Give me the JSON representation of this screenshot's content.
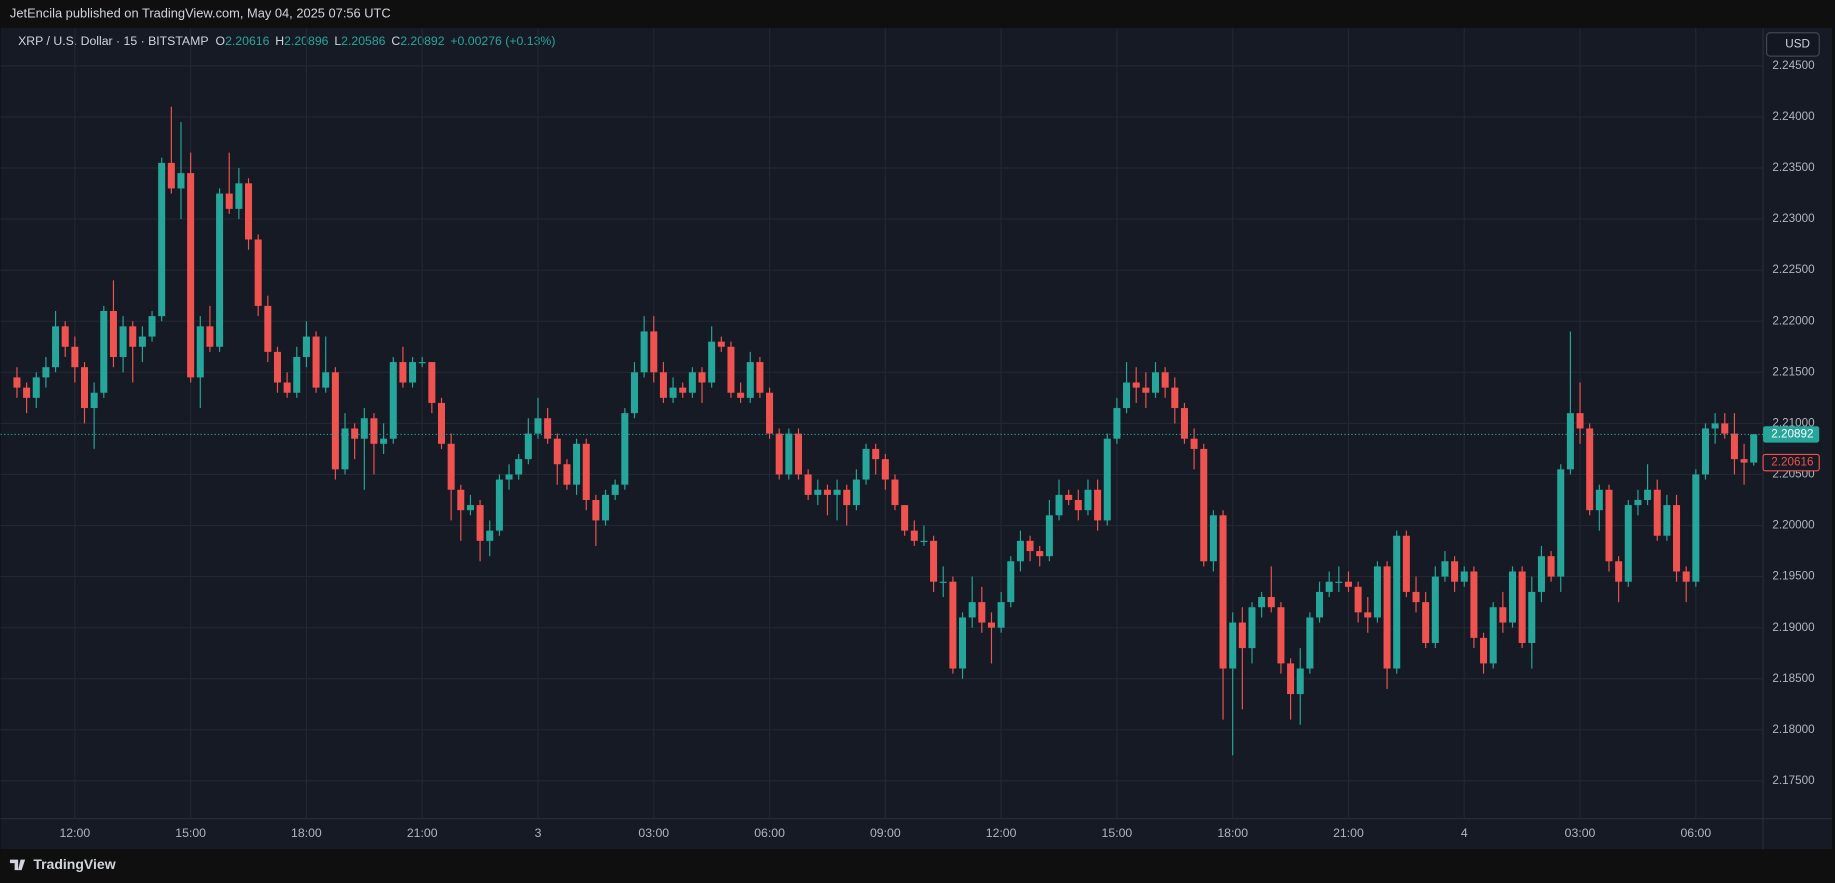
{
  "chart_data": {
    "type": "candlestick",
    "published": "JetEncila published on TradingView.com, May 04, 2025 07:56 UTC",
    "title": "XRP / U.S. Dollar · 15 · BITSTAMP",
    "ohlc": {
      "open": 2.20616,
      "high": 2.20896,
      "low": 2.20586,
      "close": 2.20892,
      "change": "+0.00276 (+0.13%)"
    },
    "ohlc_letters": {
      "open": "O",
      "high": "H",
      "low": "L",
      "close": "C"
    },
    "currency": "USD",
    "brand": "TradingView",
    "up_color": "#26a69a",
    "down_color": "#ef5350",
    "grid": true,
    "ylim": [
      2.1713,
      2.2487
    ],
    "yticks": [
      {
        "value": 2.175,
        "label": "2.17500"
      },
      {
        "value": 2.18,
        "label": "2.18000"
      },
      {
        "value": 2.185,
        "label": "2.18500"
      },
      {
        "value": 2.19,
        "label": "2.19000"
      },
      {
        "value": 2.195,
        "label": "2.19500"
      },
      {
        "value": 2.2,
        "label": "2.20000"
      },
      {
        "value": 2.205,
        "label": "2.20500"
      },
      {
        "value": 2.21,
        "label": "2.21000"
      },
      {
        "value": 2.215,
        "label": "2.21500"
      },
      {
        "value": 2.22,
        "label": "2.22000"
      },
      {
        "value": 2.225,
        "label": "2.22500"
      },
      {
        "value": 2.23,
        "label": "2.23000"
      },
      {
        "value": 2.235,
        "label": "2.23500"
      },
      {
        "value": 2.24,
        "label": "2.24000"
      },
      {
        "value": 2.245,
        "label": "2.24500"
      }
    ],
    "xtick_labels": [
      "12:00",
      "15:00",
      "18:00",
      "21:00",
      "3",
      "03:00",
      "06:00",
      "09:00",
      "12:00",
      "15:00",
      "18:00",
      "21:00",
      "4",
      "03:00",
      "06:00"
    ],
    "candles": [
      [
        2.2145,
        2.2155,
        2.2125,
        2.2135
      ],
      [
        2.2135,
        2.214,
        2.211,
        2.2125
      ],
      [
        2.2125,
        2.215,
        2.2115,
        2.2145
      ],
      [
        2.2145,
        2.2165,
        2.2135,
        2.2155
      ],
      [
        2.2155,
        2.221,
        2.215,
        2.2195
      ],
      [
        2.2195,
        2.22,
        2.2165,
        2.2175
      ],
      [
        2.2175,
        2.2185,
        2.214,
        2.2155
      ],
      [
        2.2155,
        2.216,
        2.21,
        2.2115
      ],
      [
        2.2115,
        2.214,
        2.2075,
        2.213
      ],
      [
        2.213,
        2.2215,
        2.2125,
        2.221
      ],
      [
        2.221,
        2.224,
        2.2155,
        2.2165
      ],
      [
        2.2165,
        2.2205,
        2.215,
        2.2195
      ],
      [
        2.2195,
        2.22,
        2.214,
        2.2175
      ],
      [
        2.2175,
        2.2195,
        2.216,
        2.2185
      ],
      [
        2.2185,
        2.221,
        2.218,
        2.2205
      ],
      [
        2.2205,
        2.236,
        2.22,
        2.2355
      ],
      [
        2.2355,
        2.241,
        2.2325,
        2.233
      ],
      [
        2.233,
        2.2395,
        2.23,
        2.2345
      ],
      [
        2.2345,
        2.2365,
        2.214,
        2.2145
      ],
      [
        2.2145,
        2.2205,
        2.2115,
        2.2195
      ],
      [
        2.2195,
        2.2215,
        2.217,
        2.2175
      ],
      [
        2.2175,
        2.233,
        2.217,
        2.2325
      ],
      [
        2.2325,
        2.2365,
        2.2305,
        2.231
      ],
      [
        2.231,
        2.235,
        2.23,
        2.2335
      ],
      [
        2.2335,
        2.234,
        2.227,
        2.228
      ],
      [
        2.228,
        2.2285,
        2.2205,
        2.2215
      ],
      [
        2.2215,
        2.2225,
        2.216,
        2.217
      ],
      [
        2.217,
        2.2175,
        2.213,
        2.214
      ],
      [
        2.214,
        2.215,
        2.2125,
        2.213
      ],
      [
        2.213,
        2.2175,
        2.2125,
        2.2165
      ],
      [
        2.2165,
        2.22,
        2.2155,
        2.2185
      ],
      [
        2.2185,
        2.219,
        2.213,
        2.2135
      ],
      [
        2.2135,
        2.2185,
        2.213,
        2.215
      ],
      [
        2.215,
        2.2155,
        2.2045,
        2.2055
      ],
      [
        2.2055,
        2.211,
        2.205,
        2.2095
      ],
      [
        2.2095,
        2.21,
        2.2065,
        2.2085
      ],
      [
        2.2085,
        2.2115,
        2.2035,
        2.2105
      ],
      [
        2.2105,
        2.211,
        2.205,
        2.208
      ],
      [
        2.208,
        2.21,
        2.207,
        2.2085
      ],
      [
        2.2085,
        2.2165,
        2.208,
        2.216
      ],
      [
        2.216,
        2.2175,
        2.2135,
        2.214
      ],
      [
        2.214,
        2.2165,
        2.2135,
        2.216
      ],
      [
        2.216,
        2.2165,
        2.2155,
        2.216
      ],
      [
        2.216,
        2.216,
        2.211,
        2.212
      ],
      [
        2.212,
        2.2125,
        2.2075,
        2.208
      ],
      [
        2.208,
        2.209,
        2.2005,
        2.2035
      ],
      [
        2.2035,
        2.204,
        2.1985,
        2.2015
      ],
      [
        2.2015,
        2.203,
        2.201,
        2.202
      ],
      [
        2.202,
        2.2025,
        2.1965,
        2.1985
      ],
      [
        2.1985,
        2.2005,
        2.197,
        2.1995
      ],
      [
        2.1995,
        2.205,
        2.199,
        2.2045
      ],
      [
        2.2045,
        2.206,
        2.2035,
        2.205
      ],
      [
        2.205,
        2.207,
        2.2045,
        2.2065
      ],
      [
        2.2065,
        2.2105,
        2.206,
        2.209
      ],
      [
        2.209,
        2.2125,
        2.2085,
        2.2105
      ],
      [
        2.2105,
        2.2115,
        2.208,
        2.2085
      ],
      [
        2.2085,
        2.209,
        2.204,
        2.206
      ],
      [
        2.206,
        2.2065,
        2.2035,
        2.204
      ],
      [
        2.204,
        2.2085,
        2.203,
        2.208
      ],
      [
        2.208,
        2.2085,
        2.2015,
        2.2025
      ],
      [
        2.2025,
        2.203,
        2.198,
        2.2005
      ],
      [
        2.2005,
        2.2035,
        2.2,
        2.203
      ],
      [
        2.203,
        2.2045,
        2.2025,
        2.204
      ],
      [
        2.204,
        2.2115,
        2.2035,
        2.211
      ],
      [
        2.211,
        2.216,
        2.2105,
        2.215
      ],
      [
        2.215,
        2.2205,
        2.2145,
        2.219
      ],
      [
        2.219,
        2.2205,
        2.214,
        2.215
      ],
      [
        2.215,
        2.216,
        2.212,
        2.2125
      ],
      [
        2.2125,
        2.2145,
        2.212,
        2.2135
      ],
      [
        2.2135,
        2.214,
        2.2125,
        2.213
      ],
      [
        2.213,
        2.2155,
        2.2125,
        2.215
      ],
      [
        2.215,
        2.2155,
        2.212,
        2.214
      ],
      [
        2.214,
        2.2195,
        2.2135,
        2.218
      ],
      [
        2.218,
        2.2185,
        2.217,
        2.2175
      ],
      [
        2.2175,
        2.218,
        2.2125,
        2.213
      ],
      [
        2.213,
        2.214,
        2.212,
        2.2125
      ],
      [
        2.2125,
        2.217,
        2.212,
        2.216
      ],
      [
        2.216,
        2.2165,
        2.2125,
        2.213
      ],
      [
        2.213,
        2.2135,
        2.2085,
        2.209
      ],
      [
        2.209,
        2.2095,
        2.2045,
        2.205
      ],
      [
        2.205,
        2.2095,
        2.2045,
        2.209
      ],
      [
        2.209,
        2.2095,
        2.2045,
        2.205
      ],
      [
        2.205,
        2.2055,
        2.2025,
        2.203
      ],
      [
        2.203,
        2.2045,
        2.202,
        2.2035
      ],
      [
        2.2035,
        2.204,
        2.201,
        2.203
      ],
      [
        2.203,
        2.2045,
        2.2005,
        2.2035
      ],
      [
        2.2035,
        2.204,
        2.2,
        2.202
      ],
      [
        2.202,
        2.2055,
        2.2015,
        2.2045
      ],
      [
        2.2045,
        2.208,
        2.204,
        2.2075
      ],
      [
        2.2075,
        2.208,
        2.205,
        2.2065
      ],
      [
        2.2065,
        2.207,
        2.2035,
        2.2045
      ],
      [
        2.2045,
        2.205,
        2.2015,
        2.202
      ],
      [
        2.202,
        2.202,
        2.199,
        2.1995
      ],
      [
        2.1995,
        2.2005,
        2.198,
        2.1985
      ],
      [
        2.1985,
        2.2,
        2.198,
        2.1985
      ],
      [
        2.1985,
        2.199,
        2.1935,
        2.1945
      ],
      [
        2.1945,
        2.196,
        2.193,
        2.1945
      ],
      [
        2.1945,
        2.195,
        2.1855,
        2.186
      ],
      [
        2.186,
        2.1915,
        2.185,
        2.191
      ],
      [
        2.191,
        2.195,
        2.19,
        2.1925
      ],
      [
        2.1925,
        2.194,
        2.1895,
        2.1905
      ],
      [
        2.1905,
        2.1915,
        2.1865,
        2.19
      ],
      [
        2.19,
        2.1935,
        2.1895,
        2.1925
      ],
      [
        2.1925,
        2.197,
        2.192,
        2.1965
      ],
      [
        2.1965,
        2.1995,
        2.1955,
        2.1985
      ],
      [
        2.1985,
        2.199,
        2.1965,
        2.1975
      ],
      [
        2.1975,
        2.198,
        2.196,
        2.197
      ],
      [
        2.197,
        2.2025,
        2.1965,
        2.201
      ],
      [
        2.201,
        2.2045,
        2.2005,
        2.203
      ],
      [
        2.203,
        2.2035,
        2.202,
        2.2025
      ],
      [
        2.2025,
        2.2035,
        2.2005,
        2.2015
      ],
      [
        2.2015,
        2.2045,
        2.201,
        2.2035
      ],
      [
        2.2035,
        2.2045,
        2.1995,
        2.2005
      ],
      [
        2.2005,
        2.209,
        2.2,
        2.2085
      ],
      [
        2.2085,
        2.2125,
        2.208,
        2.2115
      ],
      [
        2.2115,
        2.216,
        2.211,
        2.214
      ],
      [
        2.214,
        2.2155,
        2.212,
        2.2135
      ],
      [
        2.2135,
        2.215,
        2.2115,
        2.213
      ],
      [
        2.213,
        2.216,
        2.2125,
        2.215
      ],
      [
        2.215,
        2.2155,
        2.2125,
        2.2135
      ],
      [
        2.2135,
        2.2145,
        2.21,
        2.2115
      ],
      [
        2.2115,
        2.212,
        2.208,
        2.2085
      ],
      [
        2.2085,
        2.2095,
        2.2055,
        2.2075
      ],
      [
        2.2075,
        2.208,
        2.196,
        2.1965
      ],
      [
        2.1965,
        2.2015,
        2.1955,
        2.201
      ],
      [
        2.201,
        2.2015,
        2.181,
        2.186
      ],
      [
        2.186,
        2.1915,
        2.1775,
        2.1905
      ],
      [
        2.1905,
        2.192,
        2.182,
        2.188
      ],
      [
        2.188,
        2.1925,
        2.1865,
        2.192
      ],
      [
        2.192,
        2.1935,
        2.191,
        2.193
      ],
      [
        2.193,
        2.196,
        2.1915,
        2.192
      ],
      [
        2.192,
        2.1925,
        2.1855,
        2.1865
      ],
      [
        2.1865,
        2.187,
        2.181,
        2.1835
      ],
      [
        2.1835,
        2.188,
        2.1805,
        2.186
      ],
      [
        2.186,
        2.1915,
        2.1855,
        2.191
      ],
      [
        2.191,
        2.1945,
        2.1905,
        2.1935
      ],
      [
        2.1935,
        2.1955,
        2.193,
        2.1945
      ],
      [
        2.1945,
        2.196,
        2.1935,
        2.1945
      ],
      [
        2.1945,
        2.1955,
        2.1935,
        2.194
      ],
      [
        2.194,
        2.1945,
        2.1905,
        2.1915
      ],
      [
        2.1915,
        2.193,
        2.1895,
        2.191
      ],
      [
        2.191,
        2.1965,
        2.1905,
        2.196
      ],
      [
        2.196,
        2.1965,
        2.184,
        2.186
      ],
      [
        2.186,
        2.1995,
        2.1855,
        2.199
      ],
      [
        2.199,
        2.1995,
        2.193,
        2.1935
      ],
      [
        2.1935,
        2.195,
        2.1915,
        2.1925
      ],
      [
        2.1925,
        2.1935,
        2.188,
        2.1885
      ],
      [
        2.1885,
        2.196,
        2.188,
        2.195
      ],
      [
        2.195,
        2.1975,
        2.1945,
        2.1965
      ],
      [
        2.1965,
        2.197,
        2.1935,
        2.1945
      ],
      [
        2.1945,
        2.196,
        2.194,
        2.1955
      ],
      [
        2.1955,
        2.196,
        2.188,
        2.189
      ],
      [
        2.189,
        2.1895,
        2.1855,
        2.1865
      ],
      [
        2.1865,
        2.1925,
        2.186,
        2.192
      ],
      [
        2.192,
        2.1935,
        2.1895,
        2.1905
      ],
      [
        2.1905,
        2.196,
        2.19,
        2.1955
      ],
      [
        2.1955,
        2.196,
        2.188,
        2.1885
      ],
      [
        2.1885,
        2.195,
        2.186,
        2.1935
      ],
      [
        2.1935,
        2.198,
        2.1925,
        2.197
      ],
      [
        2.197,
        2.1975,
        2.1945,
        2.195
      ],
      [
        2.195,
        2.206,
        2.1935,
        2.2055
      ],
      [
        2.2055,
        2.219,
        2.205,
        2.211
      ],
      [
        2.211,
        2.214,
        2.208,
        2.2095
      ],
      [
        2.2095,
        2.21,
        2.201,
        2.2015
      ],
      [
        2.2015,
        2.204,
        2.1995,
        2.2035
      ],
      [
        2.2035,
        2.204,
        2.1955,
        2.1965
      ],
      [
        2.1965,
        2.197,
        2.1925,
        2.1945
      ],
      [
        2.1945,
        2.2025,
        2.194,
        2.202
      ],
      [
        2.202,
        2.2035,
        2.201,
        2.2025
      ],
      [
        2.2025,
        2.206,
        2.202,
        2.2035
      ],
      [
        2.2035,
        2.2045,
        2.1985,
        2.199
      ],
      [
        2.199,
        2.203,
        2.1985,
        2.202
      ],
      [
        2.202,
        2.203,
        2.1945,
        2.1955
      ],
      [
        2.1955,
        2.196,
        2.1925,
        2.1945
      ],
      [
        2.1945,
        2.2055,
        2.194,
        2.205
      ],
      [
        2.205,
        2.21,
        2.2045,
        2.2095
      ],
      [
        2.2095,
        2.211,
        2.208,
        2.21
      ],
      [
        2.21,
        2.211,
        2.2085,
        2.209
      ],
      [
        2.209,
        2.211,
        2.205,
        2.2065
      ],
      [
        2.2065,
        2.208,
        2.204,
        2.20616
      ],
      [
        2.20616,
        2.20896,
        2.20586,
        2.20892
      ]
    ]
  }
}
